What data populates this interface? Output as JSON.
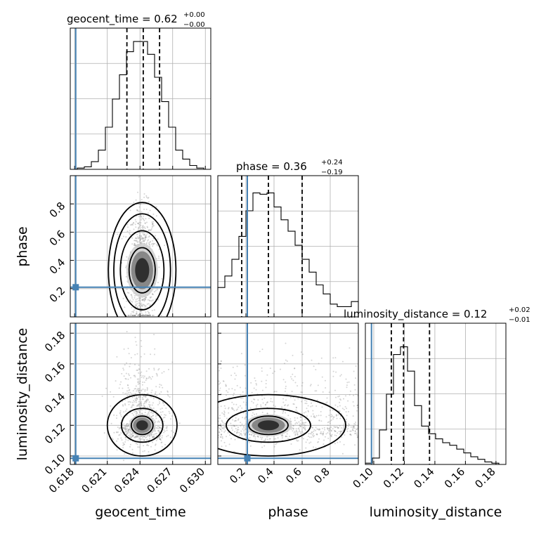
{
  "chart_data": {
    "type": "corner",
    "grid": true,
    "truth_color": "#4682b4",
    "params": [
      {
        "name": "geocent_time",
        "xlabel": "geocent_time",
        "range": [
          0.6176,
          0.6305
        ],
        "ticks": [
          0.618,
          0.621,
          0.624,
          0.627,
          0.63
        ],
        "tick_labels": [
          "0.618",
          "0.621",
          "0.624",
          "0.627",
          "0.630"
        ],
        "truth": 0.6181,
        "title": {
          "main": "geocent_time = 0.62",
          "plus": "+0.00",
          "minus": "−0.00"
        },
        "quantiles": [
          0.6228,
          0.6243,
          0.6258
        ],
        "hist": {
          "edges_start": 0.6176,
          "bin_width": 0.000645,
          "counts": [
            0,
            0.01,
            0.02,
            0.06,
            0.15,
            0.33,
            0.55,
            0.74,
            0.92,
            1.0,
            1.0,
            0.9,
            0.72,
            0.53,
            0.33,
            0.15,
            0.08,
            0.03,
            0.01,
            0
          ]
        }
      },
      {
        "name": "phase",
        "xlabel": "phase",
        "ylabel": "phase",
        "range": [
          0.0,
          1.0
        ],
        "ticks": [
          0.2,
          0.4,
          0.6,
          0.8
        ],
        "tick_labels": [
          "0.2",
          "0.4",
          "0.6",
          "0.8"
        ],
        "truth": 0.21,
        "title": {
          "main": "phase = 0.36",
          "plus": "+0.24",
          "minus": "−0.19"
        },
        "quantiles": [
          0.17,
          0.36,
          0.6
        ],
        "hist": {
          "edges_start": 0.0,
          "bin_width": 0.05,
          "counts": [
            0.23,
            0.32,
            0.45,
            0.63,
            0.83,
            0.97,
            0.96,
            0.97,
            0.86,
            0.76,
            0.67,
            0.56,
            0.45,
            0.35,
            0.25,
            0.18,
            0.1,
            0.08,
            0.08,
            0.12
          ]
        }
      },
      {
        "name": "luminosity_distance",
        "xlabel": "luminosity_distance",
        "ylabel": "luminosity_distance",
        "range": [
          0.0945,
          0.1865
        ],
        "ticks": [
          0.1,
          0.12,
          0.14,
          0.16,
          0.18
        ],
        "tick_labels": [
          "0.10",
          "0.12",
          "0.14",
          "0.16",
          "0.18"
        ],
        "truth": 0.0985,
        "title": {
          "main": "luminosity_distance = 0.12",
          "plus": "+0.02",
          "minus": "−0.01"
        },
        "quantiles": [
          0.1115,
          0.1195,
          0.1365
        ],
        "hist": {
          "edges_start": 0.0945,
          "bin_width": 0.0046,
          "counts": [
            0.01,
            0.05,
            0.27,
            0.55,
            0.86,
            0.92,
            0.73,
            0.46,
            0.3,
            0.24,
            0.2,
            0.17,
            0.15,
            0.12,
            0.09,
            0.06,
            0.04,
            0.02,
            0.01,
            0.0
          ]
        }
      }
    ],
    "scatter": [
      {
        "x_param": "geocent_time",
        "y_param": "phase",
        "center": [
          0.6242,
          0.33
        ],
        "spread": [
          0.00065,
          0.17
        ],
        "contour_ellipses": [
          [
            0.0012,
            0.16
          ],
          [
            0.002,
            0.28
          ],
          [
            0.0026,
            0.4
          ],
          [
            0.0031,
            0.48
          ]
        ]
      },
      {
        "x_param": "geocent_time",
        "y_param": "luminosity_distance",
        "center": [
          0.6242,
          0.12
        ],
        "spread": [
          0.0011,
          0.013
        ],
        "contour_ellipses": [
          [
            0.001,
            0.006
          ],
          [
            0.0019,
            0.011
          ],
          [
            0.0032,
            0.02
          ]
        ]
      },
      {
        "x_param": "phase",
        "y_param": "luminosity_distance",
        "center": [
          0.36,
          0.12
        ],
        "spread": [
          0.22,
          0.012
        ],
        "contour_ellipses": [
          [
            0.14,
            0.006
          ],
          [
            0.3,
            0.011
          ],
          [
            0.55,
            0.02
          ]
        ]
      }
    ]
  }
}
